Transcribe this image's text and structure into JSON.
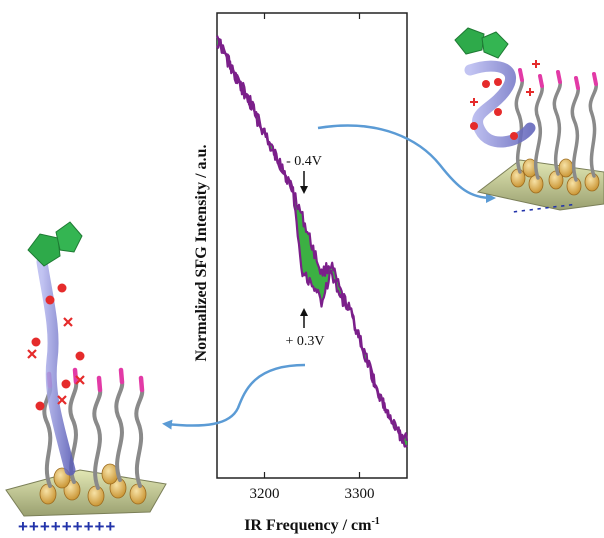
{
  "chart_data": {
    "type": "line",
    "title": "",
    "xlabel": "IR Frequency / cm",
    "xlabel_superscript": "-1",
    "ylabel": "Normalized SFG Intensity / a.u.",
    "x_ticks": [
      "3200",
      "3300"
    ],
    "xlim": [
      3150,
      3350
    ],
    "y_ticks_shown": false,
    "series": [
      {
        "x": [
          3150,
          3160,
          3170,
          3180,
          3190,
          3200,
          3210,
          3220,
          3230,
          3240,
          3250,
          3260,
          3270,
          3280,
          3290,
          3300,
          3310,
          3320,
          3330,
          3340,
          3350
        ],
        "y": [
          0.94,
          0.91,
          0.86,
          0.82,
          0.78,
          0.74,
          0.7,
          0.66,
          0.62,
          0.56,
          0.5,
          0.44,
          0.46,
          0.4,
          0.36,
          0.3,
          0.24,
          0.18,
          0.14,
          0.11,
          0.08
        ]
      },
      {
        "x": [
          3150,
          3160,
          3170,
          3180,
          3190,
          3200,
          3210,
          3220,
          3230,
          3240,
          3250,
          3260,
          3270,
          3280,
          3290,
          3300,
          3310,
          3320,
          3330,
          3340,
          3350
        ],
        "y": [
          0.96,
          0.9,
          0.86,
          0.83,
          0.79,
          0.74,
          0.7,
          0.66,
          0.62,
          0.44,
          0.42,
          0.38,
          0.44,
          0.39,
          0.36,
          0.3,
          0.24,
          0.18,
          0.14,
          0.1,
          0.07
        ]
      }
    ],
    "annotations": [
      {
        "text": "- 0.4V",
        "x": 3240
      },
      {
        "text": "+ 0.3V",
        "x": 3240
      }
    ],
    "fill_between_color": "#3cb043",
    "line_color": "#7b1f8a"
  },
  "labels": {
    "right_substrate_charges": "- - - - - - - -",
    "left_substrate_charges": "+++++++++"
  },
  "colors": {
    "arrow": "#5b9bd5",
    "substrate": "#c9d29a",
    "pentagon": "#2eaa4a",
    "helix": "#8d90d8",
    "chain": "#8a8a8a",
    "headgroup": "#e23aa6",
    "ion": "#e52b2b"
  }
}
